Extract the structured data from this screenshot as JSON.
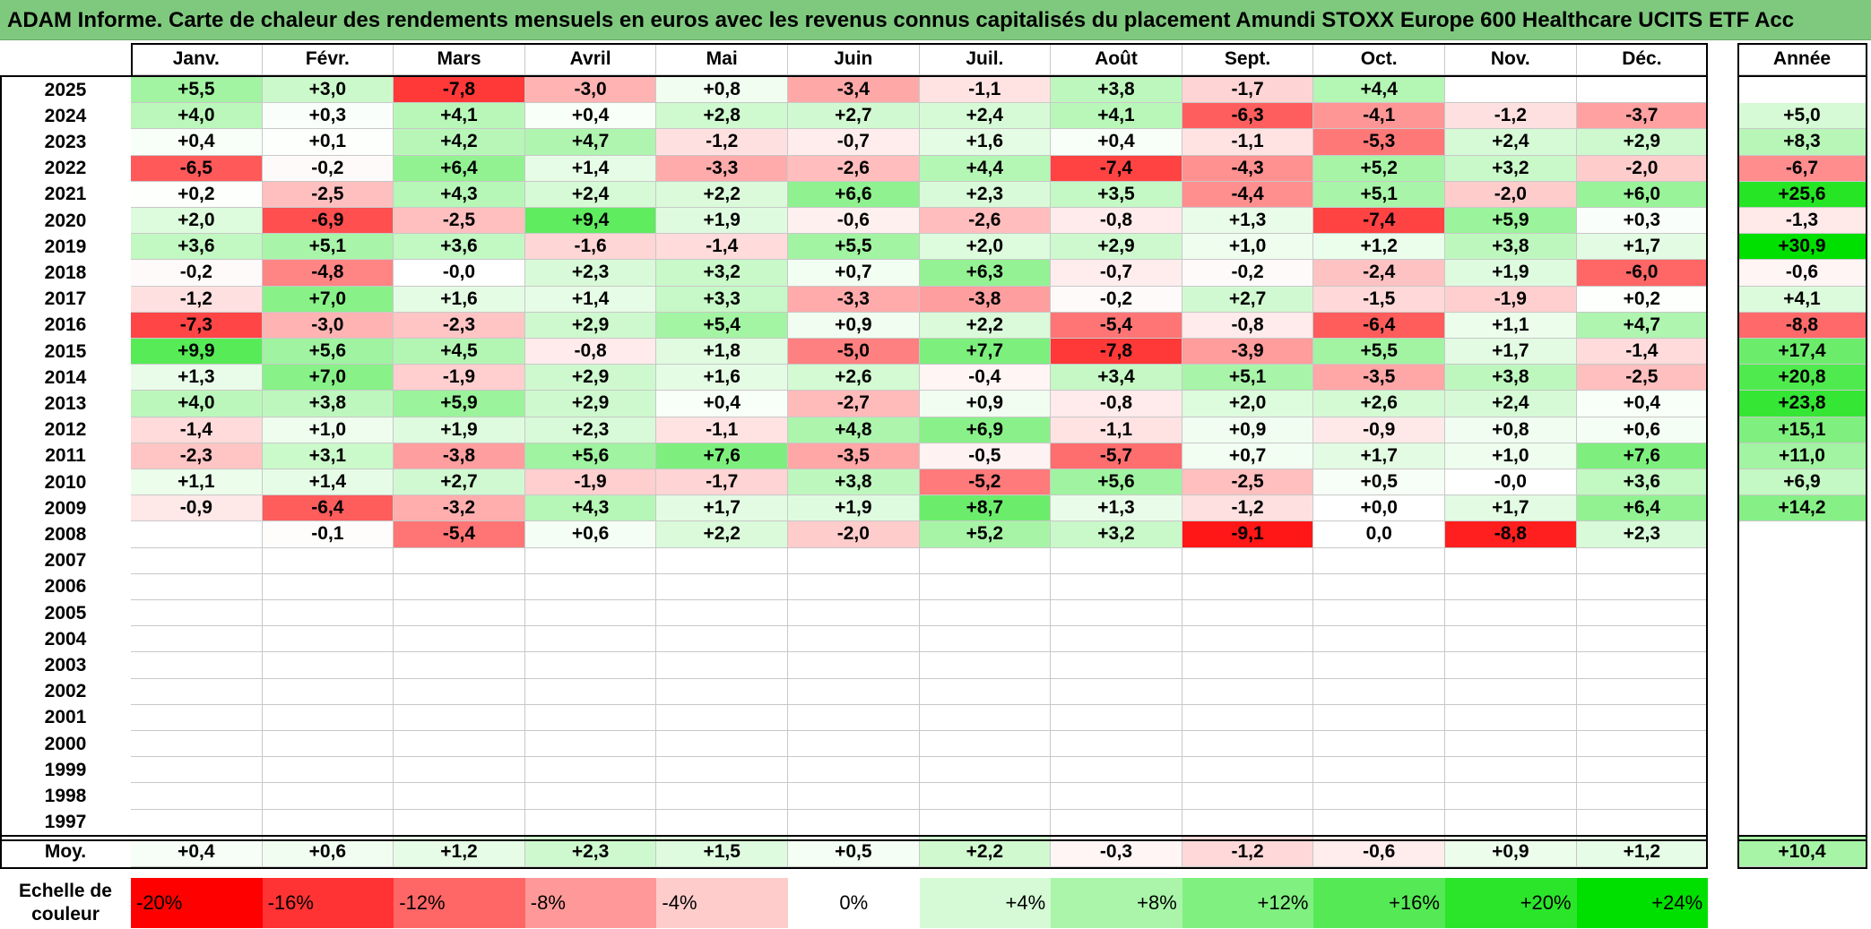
{
  "title": "ADAM Informe. Carte de chaleur des rendements mensuels en euros avec les revenus connus capitalisés du placement Amundi STOXX Europe 600 Healthcare UCITS ETF Acc",
  "colors": {
    "red": "#ff0000",
    "green": "#00e000",
    "white": "#ffffff",
    "title_bg": "#7fc97f"
  },
  "chart_data": {
    "type": "heatmap",
    "months": [
      "Janv.",
      "Févr.",
      "Mars",
      "Avril",
      "Mai",
      "Juin",
      "Juil.",
      "Août",
      "Sept.",
      "Oct.",
      "Nov.",
      "Déc."
    ],
    "year_header": "Année",
    "avg_label": "Moy.",
    "rows": [
      {
        "year": "2025",
        "values": [
          "+5,5",
          "+3,0",
          "-7,8",
          "-3,0",
          "+0,8",
          "-3,4",
          "-1,1",
          "+3,8",
          "-1,7",
          "+4,4",
          "",
          ""
        ],
        "annual": ""
      },
      {
        "year": "2024",
        "values": [
          "+4,0",
          "+0,3",
          "+4,1",
          "+0,4",
          "+2,8",
          "+2,7",
          "+2,4",
          "+4,1",
          "-6,3",
          "-4,1",
          "-1,2",
          "-3,7"
        ],
        "annual": "+5,0"
      },
      {
        "year": "2023",
        "values": [
          "+0,4",
          "+0,1",
          "+4,2",
          "+4,7",
          "-1,2",
          "-0,7",
          "+1,6",
          "+0,4",
          "-1,1",
          "-5,3",
          "+2,4",
          "+2,9"
        ],
        "annual": "+8,3"
      },
      {
        "year": "2022",
        "values": [
          "-6,5",
          "-0,2",
          "+6,4",
          "+1,4",
          "-3,3",
          "-2,6",
          "+4,4",
          "-7,4",
          "-4,3",
          "+5,2",
          "+3,2",
          "-2,0"
        ],
        "annual": "-6,7"
      },
      {
        "year": "2021",
        "values": [
          "+0,2",
          "-2,5",
          "+4,3",
          "+2,4",
          "+2,2",
          "+6,6",
          "+2,3",
          "+3,5",
          "-4,4",
          "+5,1",
          "-2,0",
          "+6,0"
        ],
        "annual": "+25,6"
      },
      {
        "year": "2020",
        "values": [
          "+2,0",
          "-6,9",
          "-2,5",
          "+9,4",
          "+1,9",
          "-0,6",
          "-2,6",
          "-0,8",
          "+1,3",
          "-7,4",
          "+5,9",
          "+0,3"
        ],
        "annual": "-1,3"
      },
      {
        "year": "2019",
        "values": [
          "+3,6",
          "+5,1",
          "+3,6",
          "-1,6",
          "-1,4",
          "+5,5",
          "+2,0",
          "+2,9",
          "+1,0",
          "+1,2",
          "+3,8",
          "+1,7"
        ],
        "annual": "+30,9"
      },
      {
        "year": "2018",
        "values": [
          "-0,2",
          "-4,8",
          "-0,0",
          "+2,3",
          "+3,2",
          "+0,7",
          "+6,3",
          "-0,7",
          "-0,2",
          "-2,4",
          "+1,9",
          "-6,0"
        ],
        "annual": "-0,6"
      },
      {
        "year": "2017",
        "values": [
          "-1,2",
          "+7,0",
          "+1,6",
          "+1,4",
          "+3,3",
          "-3,3",
          "-3,8",
          "-0,2",
          "+2,7",
          "-1,5",
          "-1,9",
          "+0,2"
        ],
        "annual": "+4,1"
      },
      {
        "year": "2016",
        "values": [
          "-7,3",
          "-3,0",
          "-2,3",
          "+2,9",
          "+5,4",
          "+0,9",
          "+2,2",
          "-5,4",
          "-0,8",
          "-6,4",
          "+1,1",
          "+4,7"
        ],
        "annual": "-8,8"
      },
      {
        "year": "2015",
        "values": [
          "+9,9",
          "+5,6",
          "+4,5",
          "-0,8",
          "+1,8",
          "-5,0",
          "+7,7",
          "-7,8",
          "-3,9",
          "+5,5",
          "+1,7",
          "-1,4"
        ],
        "annual": "+17,4"
      },
      {
        "year": "2014",
        "values": [
          "+1,3",
          "+7,0",
          "-1,9",
          "+2,9",
          "+1,6",
          "+2,6",
          "-0,4",
          "+3,4",
          "+5,1",
          "-3,5",
          "+3,8",
          "-2,5"
        ],
        "annual": "+20,8"
      },
      {
        "year": "2013",
        "values": [
          "+4,0",
          "+3,8",
          "+5,9",
          "+2,9",
          "+0,4",
          "-2,7",
          "+0,9",
          "-0,8",
          "+2,0",
          "+2,6",
          "+2,4",
          "+0,4"
        ],
        "annual": "+23,8"
      },
      {
        "year": "2012",
        "values": [
          "-1,4",
          "+1,0",
          "+1,9",
          "+2,3",
          "-1,1",
          "+4,8",
          "+6,9",
          "-1,1",
          "+0,9",
          "-0,9",
          "+0,8",
          "+0,6"
        ],
        "annual": "+15,1"
      },
      {
        "year": "2011",
        "values": [
          "-2,3",
          "+3,1",
          "-3,8",
          "+5,6",
          "+7,6",
          "-3,5",
          "-0,5",
          "-5,7",
          "+0,7",
          "+1,7",
          "+1,0",
          "+7,6"
        ],
        "annual": "+11,0"
      },
      {
        "year": "2010",
        "values": [
          "+1,1",
          "+1,4",
          "+2,7",
          "-1,9",
          "-1,7",
          "+3,8",
          "-5,2",
          "+5,6",
          "-2,5",
          "+0,5",
          "-0,0",
          "+3,6"
        ],
        "annual": "+6,9"
      },
      {
        "year": "2009",
        "values": [
          "-0,9",
          "-6,4",
          "-3,2",
          "+4,3",
          "+1,7",
          "+1,9",
          "+8,7",
          "+1,3",
          "-1,2",
          "+0,0",
          "+1,7",
          "+6,4"
        ],
        "annual": "+14,2"
      },
      {
        "year": "2008",
        "values": [
          "",
          "-0,1",
          "-5,4",
          "+0,6",
          "+2,2",
          "-2,0",
          "+5,2",
          "+3,2",
          "-9,1",
          "0,0",
          "-8,8",
          "+2,3"
        ],
        "annual": ""
      },
      {
        "year": "2007",
        "values": [
          "",
          "",
          "",
          "",
          "",
          "",
          "",
          "",
          "",
          "",
          "",
          ""
        ],
        "annual": ""
      },
      {
        "year": "2006",
        "values": [
          "",
          "",
          "",
          "",
          "",
          "",
          "",
          "",
          "",
          "",
          "",
          ""
        ],
        "annual": ""
      },
      {
        "year": "2005",
        "values": [
          "",
          "",
          "",
          "",
          "",
          "",
          "",
          "",
          "",
          "",
          "",
          ""
        ],
        "annual": ""
      },
      {
        "year": "2004",
        "values": [
          "",
          "",
          "",
          "",
          "",
          "",
          "",
          "",
          "",
          "",
          "",
          ""
        ],
        "annual": ""
      },
      {
        "year": "2003",
        "values": [
          "",
          "",
          "",
          "",
          "",
          "",
          "",
          "",
          "",
          "",
          "",
          ""
        ],
        "annual": ""
      },
      {
        "year": "2002",
        "values": [
          "",
          "",
          "",
          "",
          "",
          "",
          "",
          "",
          "",
          "",
          "",
          ""
        ],
        "annual": ""
      },
      {
        "year": "2001",
        "values": [
          "",
          "",
          "",
          "",
          "",
          "",
          "",
          "",
          "",
          "",
          "",
          ""
        ],
        "annual": ""
      },
      {
        "year": "2000",
        "values": [
          "",
          "",
          "",
          "",
          "",
          "",
          "",
          "",
          "",
          "",
          "",
          ""
        ],
        "annual": ""
      },
      {
        "year": "1999",
        "values": [
          "",
          "",
          "",
          "",
          "",
          "",
          "",
          "",
          "",
          "",
          "",
          ""
        ],
        "annual": ""
      },
      {
        "year": "1998",
        "values": [
          "",
          "",
          "",
          "",
          "",
          "",
          "",
          "",
          "",
          "",
          "",
          ""
        ],
        "annual": ""
      },
      {
        "year": "1997",
        "values": [
          "",
          "",
          "",
          "",
          "",
          "",
          "",
          "",
          "",
          "",
          "",
          ""
        ],
        "annual": ""
      }
    ],
    "averages": [
      "+0,4",
      "+0,6",
      "+1,2",
      "+2,3",
      "+1,5",
      "+0,5",
      "+2,2",
      "-0,3",
      "-1,2",
      "-0,6",
      "+0,9",
      "+1,2"
    ],
    "average_annual": "+10,4",
    "scale_label": "Echelle de couleur",
    "scale": [
      {
        "label": "-20%",
        "value": -20
      },
      {
        "label": "-16%",
        "value": -16
      },
      {
        "label": "-12%",
        "value": -12
      },
      {
        "label": "-8%",
        "value": -8
      },
      {
        "label": "-4%",
        "value": -4
      },
      {
        "label": "0%",
        "value": 0
      },
      {
        "label": "+4%",
        "value": 4
      },
      {
        "label": "+8%",
        "value": 8
      },
      {
        "label": "+12%",
        "value": 12
      },
      {
        "label": "+16%",
        "value": 16
      },
      {
        "label": "+20%",
        "value": 20
      },
      {
        "label": "+24%",
        "value": 24
      }
    ]
  }
}
